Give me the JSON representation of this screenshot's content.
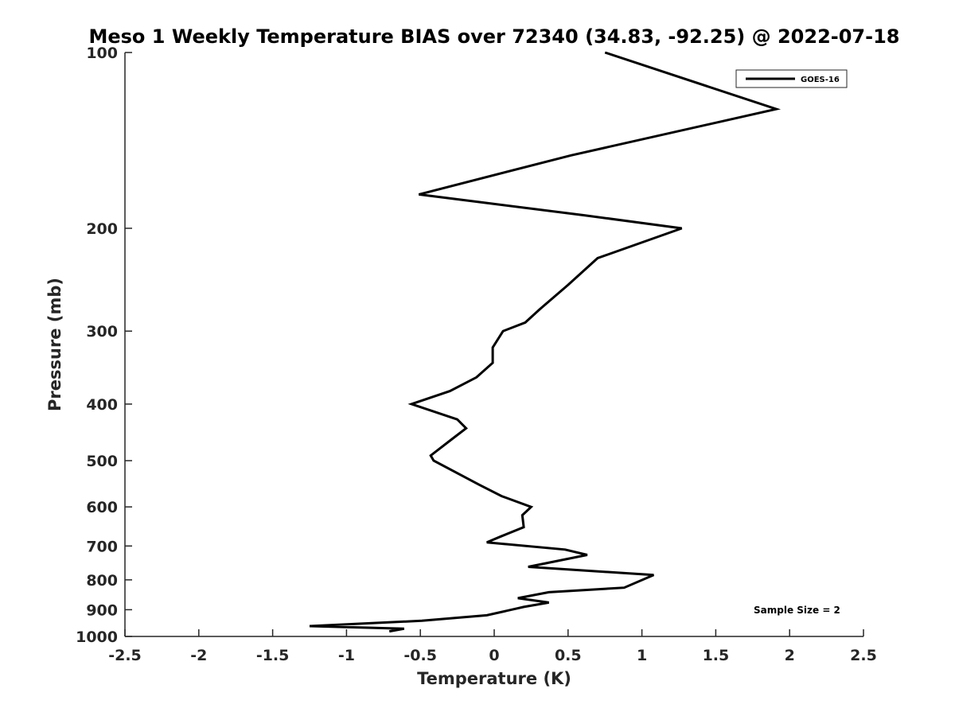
{
  "chart_data": {
    "type": "line",
    "title": "Meso 1 Weekly Temperature BIAS over 72340 (34.83, -92.25) @ 2022-07-18",
    "xlabel": "Temperature (K)",
    "ylabel": "Pressure (mb)",
    "xlim": [
      -2.5,
      2.5
    ],
    "ylim": [
      100,
      1000
    ],
    "y_scale": "log",
    "y_reversed": true,
    "x_ticks": [
      "-2.5",
      "-2",
      "-1.5",
      "-1",
      "-0.5",
      "0",
      "0.5",
      "1",
      "1.5",
      "2",
      "2.5"
    ],
    "y_ticks": [
      "100",
      "200",
      "300",
      "400",
      "500",
      "600",
      "700",
      "800",
      "900",
      "1000"
    ],
    "grid": false,
    "legend_position": "top-right",
    "annotation": "Sample Size = 2",
    "line_color": "#000000",
    "series": [
      {
        "name": "GOES-16",
        "points": [
          [
            0.75,
            100
          ],
          [
            1.91,
            125
          ],
          [
            0.52,
            150
          ],
          [
            -0.51,
            175
          ],
          [
            0.61,
            190
          ],
          [
            1.27,
            200
          ],
          [
            0.7,
            225
          ],
          [
            0.5,
            250
          ],
          [
            0.31,
            275
          ],
          [
            0.21,
            290
          ],
          [
            0.06,
            300
          ],
          [
            -0.01,
            320
          ],
          [
            -0.01,
            340
          ],
          [
            -0.12,
            360
          ],
          [
            -0.3,
            380
          ],
          [
            -0.56,
            400
          ],
          [
            -0.25,
            425
          ],
          [
            -0.19,
            440
          ],
          [
            -0.29,
            460
          ],
          [
            -0.43,
            490
          ],
          [
            -0.41,
            500
          ],
          [
            -0.1,
            550
          ],
          [
            0.05,
            575
          ],
          [
            0.25,
            600
          ],
          [
            0.19,
            620
          ],
          [
            0.2,
            650
          ],
          [
            0.04,
            675
          ],
          [
            -0.05,
            690
          ],
          [
            0.48,
            710
          ],
          [
            0.63,
            725
          ],
          [
            0.23,
            760
          ],
          [
            1.08,
            785
          ],
          [
            0.88,
            825
          ],
          [
            0.37,
            840
          ],
          [
            0.16,
            860
          ],
          [
            0.37,
            875
          ],
          [
            0.2,
            890
          ],
          [
            -0.05,
            920
          ],
          [
            -0.49,
            940
          ],
          [
            -1.25,
            960
          ],
          [
            -0.61,
            970
          ],
          [
            -0.71,
            980
          ]
        ]
      }
    ]
  }
}
